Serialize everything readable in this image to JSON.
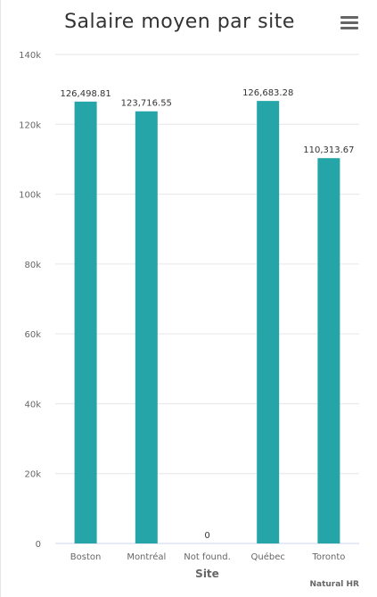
{
  "chart_data": {
    "type": "bar",
    "title": "Salaire moyen par site",
    "xlabel": "Site",
    "ylabel": "",
    "categories": [
      "Boston",
      "Montréal",
      "Not found.",
      "Québec",
      "Toronto"
    ],
    "values": [
      126498.81,
      123716.55,
      0,
      126683.28,
      110313.67
    ],
    "value_labels": [
      "126,498.81",
      "123,716.55",
      "0",
      "126,683.28",
      "110,313.67"
    ],
    "ylim": [
      0,
      140000
    ],
    "yticks": [
      0,
      20000,
      40000,
      60000,
      80000,
      100000,
      120000,
      140000
    ],
    "ytick_labels": [
      "0",
      "20k",
      "40k",
      "60k",
      "80k",
      "100k",
      "120k",
      "140k"
    ],
    "grid": true,
    "bar_color": "#26a5a8"
  },
  "credits": "Natural HR",
  "menu_icon": "hamburger-menu-icon"
}
